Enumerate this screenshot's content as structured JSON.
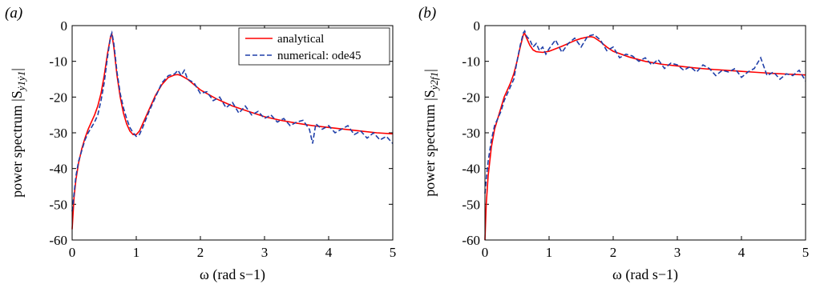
{
  "chart_data": [
    {
      "panel_label": "(a)",
      "type": "line",
      "xlabel": "ω (rad s−1)",
      "ylabel": "power spectrum |S",
      "ylabel_subscript": "ẏ1ẏ1",
      "ylabel_close": "|",
      "xlim": [
        0,
        5
      ],
      "ylim": [
        -60,
        0
      ],
      "x_ticks": [
        "0",
        "1",
        "2",
        "3",
        "4",
        "5"
      ],
      "y_ticks": [
        "-60",
        "-50",
        "-40",
        "-30",
        "-20",
        "-10",
        "0"
      ],
      "legend": {
        "position": "top-right",
        "entries": [
          "analytical",
          "numerical: ode45"
        ]
      },
      "series": [
        {
          "name": "analytical",
          "style": "solid",
          "color": "#ff0000",
          "x": [
            0.0,
            0.03,
            0.06,
            0.1,
            0.15,
            0.2,
            0.25,
            0.3,
            0.35,
            0.4,
            0.45,
            0.5,
            0.55,
            0.6,
            0.62,
            0.65,
            0.7,
            0.75,
            0.8,
            0.85,
            0.9,
            0.95,
            1.0,
            1.05,
            1.1,
            1.2,
            1.3,
            1.4,
            1.5,
            1.6,
            1.65,
            1.7,
            1.8,
            1.9,
            2.0,
            2.25,
            2.5,
            2.75,
            3.0,
            3.25,
            3.5,
            3.75,
            4.0,
            4.25,
            4.5,
            4.75,
            5.0
          ],
          "y": [
            -57,
            -48,
            -43,
            -38.5,
            -34.5,
            -31.5,
            -29,
            -27,
            -25,
            -22.5,
            -19,
            -14,
            -8,
            -3,
            -2.5,
            -6,
            -14,
            -20,
            -24.5,
            -27.5,
            -29.5,
            -30.5,
            -30.5,
            -29.5,
            -27.5,
            -23.5,
            -19.5,
            -16.5,
            -14.5,
            -13.8,
            -13.7,
            -14,
            -15,
            -16.5,
            -18,
            -20.5,
            -22.5,
            -24,
            -25.5,
            -26.5,
            -27.3,
            -28,
            -28.5,
            -29,
            -29.5,
            -30,
            -30.3
          ]
        },
        {
          "name": "numerical: ode45",
          "style": "dashed",
          "color": "#1f3fa8",
          "x": [
            0.0,
            0.03,
            0.06,
            0.1,
            0.15,
            0.2,
            0.25,
            0.3,
            0.35,
            0.4,
            0.45,
            0.5,
            0.55,
            0.6,
            0.62,
            0.65,
            0.7,
            0.75,
            0.8,
            0.85,
            0.9,
            0.95,
            1.0,
            1.05,
            1.1,
            1.2,
            1.3,
            1.4,
            1.5,
            1.6,
            1.65,
            1.7,
            1.75,
            1.8,
            1.9,
            2.0,
            2.1,
            2.2,
            2.3,
            2.4,
            2.5,
            2.6,
            2.7,
            2.8,
            2.9,
            3.0,
            3.1,
            3.2,
            3.3,
            3.4,
            3.5,
            3.6,
            3.7,
            3.75,
            3.8,
            3.9,
            4.0,
            4.1,
            4.2,
            4.3,
            4.4,
            4.5,
            4.6,
            4.7,
            4.8,
            4.9,
            5.0
          ],
          "y": [
            -52,
            -47,
            -42,
            -38,
            -35,
            -32,
            -30,
            -28.5,
            -27,
            -25,
            -21,
            -16,
            -9,
            -3,
            -2,
            -5,
            -13,
            -19,
            -23,
            -26,
            -28.5,
            -30,
            -31,
            -30.5,
            -28.5,
            -24,
            -20,
            -16,
            -14,
            -13.5,
            -12.5,
            -14,
            -12.5,
            -15,
            -16,
            -19,
            -18.5,
            -21,
            -20,
            -23,
            -21.5,
            -24.5,
            -22.5,
            -25,
            -24,
            -26,
            -25,
            -27,
            -26,
            -28,
            -27,
            -26.5,
            -29,
            -33,
            -27.5,
            -29,
            -28,
            -30,
            -29,
            -28,
            -30.5,
            -29.5,
            -31.5,
            -30,
            -32,
            -31,
            -33
          ]
        }
      ]
    },
    {
      "panel_label": "(b)",
      "type": "line",
      "xlabel": "ω (rad s−1)",
      "ylabel": "power spectrum |S",
      "ylabel_subscript": "ẏ2f1",
      "ylabel_close": "|",
      "xlim": [
        0,
        5
      ],
      "ylim": [
        -60,
        0
      ],
      "x_ticks": [
        "0",
        "1",
        "2",
        "3",
        "4",
        "5"
      ],
      "y_ticks": [
        "-60",
        "-50",
        "-40",
        "-30",
        "-20",
        "-10",
        "0"
      ],
      "series": [
        {
          "name": "analytical",
          "style": "solid",
          "color": "#ff0000",
          "x": [
            0.0,
            0.02,
            0.05,
            0.1,
            0.15,
            0.2,
            0.25,
            0.3,
            0.35,
            0.4,
            0.45,
            0.5,
            0.55,
            0.6,
            0.62,
            0.65,
            0.7,
            0.75,
            0.8,
            0.9,
            1.0,
            1.1,
            1.2,
            1.3,
            1.4,
            1.5,
            1.6,
            1.65,
            1.7,
            1.8,
            1.9,
            2.0,
            2.25,
            2.5,
            2.75,
            3.0,
            3.25,
            3.5,
            3.75,
            4.0,
            4.25,
            4.5,
            4.75,
            5.0
          ],
          "y": [
            -60,
            -50,
            -42,
            -34,
            -29,
            -26,
            -23,
            -20,
            -18,
            -16,
            -13.5,
            -10,
            -6,
            -2.5,
            -2.2,
            -3.5,
            -5.5,
            -6.8,
            -7.3,
            -7.5,
            -7.2,
            -6.5,
            -5.8,
            -5,
            -4.2,
            -3.6,
            -3.2,
            -3.1,
            -3.3,
            -4.5,
            -6,
            -7.2,
            -8.8,
            -10,
            -10.8,
            -11.3,
            -11.8,
            -12.2,
            -12.5,
            -12.8,
            -13.1,
            -13.4,
            -13.6,
            -13.8
          ]
        },
        {
          "name": "numerical: ode45",
          "style": "dashed",
          "color": "#1f3fa8",
          "x": [
            0.0,
            0.02,
            0.05,
            0.1,
            0.15,
            0.2,
            0.25,
            0.3,
            0.35,
            0.4,
            0.45,
            0.5,
            0.55,
            0.6,
            0.62,
            0.65,
            0.7,
            0.75,
            0.8,
            0.85,
            0.9,
            0.95,
            1.0,
            1.1,
            1.2,
            1.3,
            1.4,
            1.5,
            1.6,
            1.7,
            1.8,
            1.9,
            2.0,
            2.1,
            2.2,
            2.3,
            2.4,
            2.5,
            2.6,
            2.7,
            2.8,
            2.9,
            3.0,
            3.1,
            3.2,
            3.3,
            3.4,
            3.5,
            3.6,
            3.7,
            3.8,
            3.9,
            4.0,
            4.1,
            4.2,
            4.3,
            4.4,
            4.5,
            4.6,
            4.7,
            4.8,
            4.9,
            5.0
          ],
          "y": [
            -47,
            -43,
            -38,
            -32,
            -28,
            -26,
            -24,
            -21,
            -19,
            -17,
            -15,
            -10,
            -5.5,
            -2,
            -1.5,
            -3,
            -4,
            -6,
            -5,
            -7,
            -6,
            -8,
            -6.5,
            -4,
            -7.5,
            -5,
            -3.5,
            -6,
            -3,
            -2.5,
            -4,
            -7,
            -6,
            -9,
            -8,
            -8.5,
            -10,
            -9,
            -11,
            -9.5,
            -12,
            -10.5,
            -11,
            -12.5,
            -11.5,
            -13,
            -11,
            -12,
            -14,
            -12.5,
            -13,
            -12,
            -14.5,
            -13,
            -12,
            -9,
            -14,
            -13,
            -15,
            -13.5,
            -14,
            -12.5,
            -15.5
          ]
        }
      ]
    }
  ]
}
